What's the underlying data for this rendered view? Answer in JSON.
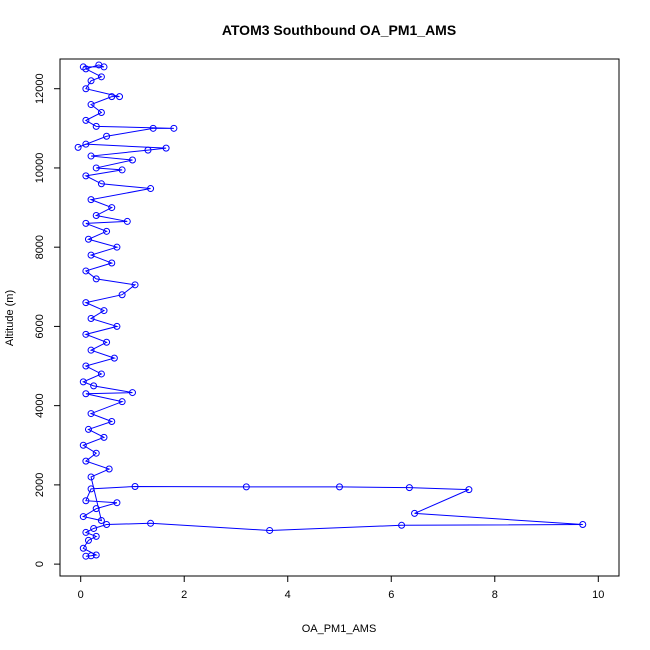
{
  "chart_data": {
    "type": "scatter",
    "title": "ATOM3 Southbound OA_PM1_AMS",
    "xlabel": "OA_PM1_AMS",
    "ylabel": "Altitude (m)",
    "xlim": [
      -0.4,
      10.4
    ],
    "ylim": [
      -300,
      12750
    ],
    "x_ticks": [
      0,
      2,
      4,
      6,
      8,
      10
    ],
    "y_ticks": [
      0,
      2000,
      4000,
      6000,
      8000,
      10000,
      12000
    ],
    "series": [
      {
        "color": "#0000ff",
        "marker": "open-circle",
        "connected": true,
        "points": [
          [
            0.1,
            200
          ],
          [
            0.2,
            210
          ],
          [
            0.3,
            230
          ],
          [
            0.05,
            400
          ],
          [
            0.15,
            600
          ],
          [
            0.3,
            700
          ],
          [
            0.1,
            800
          ],
          [
            0.25,
            900
          ],
          [
            0.5,
            1000
          ],
          [
            1.35,
            1030
          ],
          [
            3.65,
            850
          ],
          [
            6.2,
            980
          ],
          [
            9.7,
            1000
          ],
          [
            6.45,
            1280
          ],
          [
            7.5,
            1880
          ],
          [
            6.35,
            1930
          ],
          [
            5.0,
            1950
          ],
          [
            3.2,
            1950
          ],
          [
            1.05,
            1960
          ],
          [
            0.2,
            1900
          ],
          [
            0.1,
            1600
          ],
          [
            0.7,
            1550
          ],
          [
            0.3,
            1400
          ],
          [
            0.05,
            1200
          ],
          [
            0.4,
            1100
          ],
          [
            0.2,
            2200
          ],
          [
            0.55,
            2400
          ],
          [
            0.1,
            2600
          ],
          [
            0.3,
            2800
          ],
          [
            0.05,
            3000
          ],
          [
            0.45,
            3200
          ],
          [
            0.15,
            3400
          ],
          [
            0.6,
            3600
          ],
          [
            0.2,
            3800
          ],
          [
            0.8,
            4100
          ],
          [
            0.1,
            4300
          ],
          [
            1.0,
            4330
          ],
          [
            0.25,
            4500
          ],
          [
            0.05,
            4600
          ],
          [
            0.4,
            4800
          ],
          [
            0.1,
            5000
          ],
          [
            0.65,
            5200
          ],
          [
            0.2,
            5400
          ],
          [
            0.5,
            5600
          ],
          [
            0.1,
            5800
          ],
          [
            0.7,
            6000
          ],
          [
            0.2,
            6200
          ],
          [
            0.45,
            6400
          ],
          [
            0.1,
            6600
          ],
          [
            0.8,
            6800
          ],
          [
            1.05,
            7050
          ],
          [
            0.3,
            7200
          ],
          [
            0.1,
            7400
          ],
          [
            0.6,
            7600
          ],
          [
            0.2,
            7800
          ],
          [
            0.7,
            8000
          ],
          [
            0.15,
            8200
          ],
          [
            0.5,
            8400
          ],
          [
            0.1,
            8600
          ],
          [
            0.9,
            8650
          ],
          [
            0.3,
            8800
          ],
          [
            0.6,
            9000
          ],
          [
            0.2,
            9200
          ],
          [
            1.35,
            9480
          ],
          [
            0.4,
            9600
          ],
          [
            0.1,
            9800
          ],
          [
            0.8,
            9950
          ],
          [
            0.3,
            10000
          ],
          [
            1.0,
            10200
          ],
          [
            0.2,
            10300
          ],
          [
            1.3,
            10450
          ],
          [
            1.65,
            10500
          ],
          [
            0.1,
            10600
          ],
          [
            -0.05,
            10520
          ],
          [
            0.5,
            10800
          ],
          [
            1.4,
            11000
          ],
          [
            1.8,
            11000
          ],
          [
            0.3,
            11050
          ],
          [
            0.1,
            11200
          ],
          [
            0.4,
            11400
          ],
          [
            0.2,
            11600
          ],
          [
            0.6,
            11800
          ],
          [
            0.75,
            11800
          ],
          [
            0.1,
            12000
          ],
          [
            0.2,
            12200
          ],
          [
            0.4,
            12300
          ],
          [
            0.1,
            12500
          ],
          [
            0.35,
            12600
          ],
          [
            0.45,
            12550
          ],
          [
            0.05,
            12550
          ]
        ]
      }
    ]
  }
}
